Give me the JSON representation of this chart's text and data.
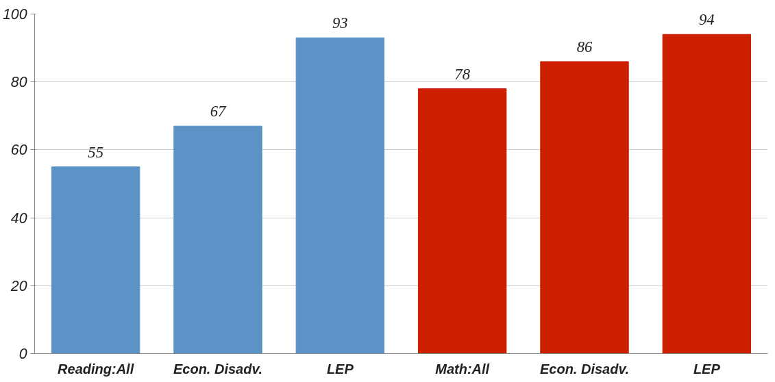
{
  "chart_data": {
    "type": "bar",
    "categories": [
      "Reading:All",
      "Econ. Disadv.",
      "LEP",
      "Math:All",
      "Econ. Disadv.",
      "LEP"
    ],
    "values": [
      55,
      67,
      93,
      78,
      86,
      94
    ],
    "colors": [
      "#5b93c7",
      "#5b93c7",
      "#5b93c7",
      "#cc1f00",
      "#cc1f00",
      "#cc1f00"
    ],
    "ylim": [
      0,
      100
    ],
    "yticks": [
      0,
      20,
      40,
      60,
      80,
      100
    ],
    "grid": "y",
    "data_labels": true
  }
}
